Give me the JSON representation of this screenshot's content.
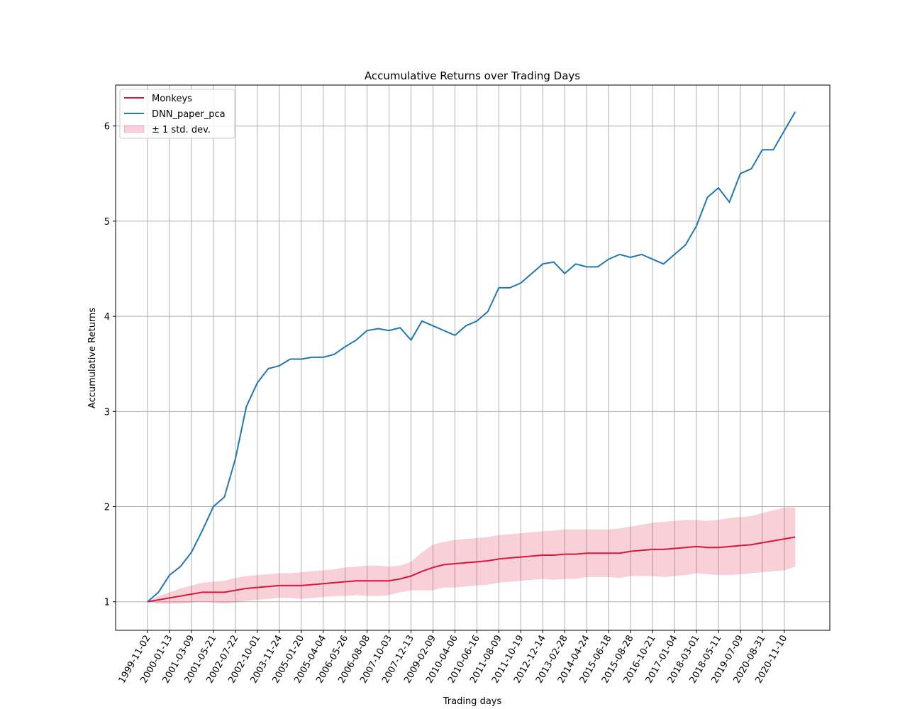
{
  "chart_data": {
    "type": "line",
    "title": "Accumulative Returns over Trading Days",
    "x_label": "Trading days",
    "y_label": "Accumulative Returns",
    "categories": [
      "1999-11-02",
      null,
      "2000-01-13",
      null,
      "2001-03-09",
      null,
      "2001-05-21",
      null,
      "2002-07-22",
      null,
      "2002-10-01",
      null,
      "2003-11-24",
      null,
      "2005-01-20",
      null,
      "2005-04-04",
      null,
      "2006-05-26",
      null,
      "2006-08-08",
      null,
      "2007-10-03",
      null,
      "2007-12-13",
      null,
      "2009-02-09",
      null,
      "2010-04-06",
      null,
      "2010-06-16",
      null,
      "2011-08-09",
      null,
      "2011-10-19",
      null,
      "2012-12-14",
      null,
      "2013-02-28",
      null,
      "2014-04-24",
      null,
      "2015-06-18",
      null,
      "2015-08-28",
      null,
      "2016-10-21",
      null,
      "2017-01-04",
      null,
      "2018-03-01",
      null,
      "2018-05-11",
      null,
      "2019-07-09",
      null,
      "2020-08-31",
      null,
      "2020-11-10",
      null
    ],
    "series": [
      {
        "name": "Monkeys",
        "color": "#dc143c",
        "values": [
          1.0,
          1.02,
          1.04,
          1.06,
          1.08,
          1.1,
          1.1,
          1.1,
          1.12,
          1.14,
          1.15,
          1.16,
          1.17,
          1.17,
          1.17,
          1.18,
          1.19,
          1.2,
          1.21,
          1.22,
          1.22,
          1.22,
          1.22,
          1.24,
          1.27,
          1.32,
          1.36,
          1.39,
          1.4,
          1.41,
          1.42,
          1.43,
          1.45,
          1.46,
          1.47,
          1.48,
          1.49,
          1.49,
          1.5,
          1.5,
          1.51,
          1.51,
          1.51,
          1.51,
          1.53,
          1.54,
          1.55,
          1.55,
          1.56,
          1.57,
          1.58,
          1.57,
          1.57,
          1.58,
          1.59,
          1.6,
          1.62,
          1.64,
          1.66,
          1.68
        ]
      },
      {
        "name": "DNN_paper_pca",
        "color": "#1f77b4",
        "values": [
          1.0,
          1.1,
          1.28,
          1.37,
          1.52,
          1.75,
          2.0,
          2.1,
          2.5,
          3.05,
          3.3,
          3.45,
          3.48,
          3.55,
          3.55,
          3.57,
          3.57,
          3.6,
          3.68,
          3.75,
          3.85,
          3.87,
          3.85,
          3.88,
          3.75,
          3.95,
          3.9,
          3.85,
          3.8,
          3.9,
          3.95,
          4.05,
          4.3,
          4.3,
          4.35,
          4.45,
          4.55,
          4.57,
          4.45,
          4.55,
          4.52,
          4.52,
          4.6,
          4.65,
          4.62,
          4.65,
          4.6,
          4.55,
          4.65,
          4.75,
          4.95,
          5.25,
          5.35,
          5.2,
          5.5,
          5.55,
          5.75,
          5.75,
          5.95,
          6.15
        ]
      },
      {
        "name": "± 1 std. dev.",
        "color": "#dc143c",
        "alpha": 0.2,
        "band": true,
        "upper": [
          1.0,
          1.06,
          1.1,
          1.14,
          1.17,
          1.2,
          1.21,
          1.22,
          1.25,
          1.27,
          1.28,
          1.29,
          1.3,
          1.3,
          1.31,
          1.32,
          1.33,
          1.34,
          1.36,
          1.37,
          1.38,
          1.38,
          1.37,
          1.38,
          1.42,
          1.52,
          1.6,
          1.63,
          1.65,
          1.66,
          1.67,
          1.68,
          1.7,
          1.71,
          1.72,
          1.73,
          1.74,
          1.75,
          1.76,
          1.76,
          1.76,
          1.76,
          1.76,
          1.77,
          1.79,
          1.81,
          1.83,
          1.84,
          1.85,
          1.86,
          1.86,
          1.85,
          1.86,
          1.88,
          1.89,
          1.9,
          1.93,
          1.96,
          1.99,
          1.99
        ],
        "lower": [
          1.0,
          0.98,
          0.98,
          0.98,
          0.99,
          1.0,
          0.99,
          0.98,
          0.99,
          1.01,
          1.02,
          1.03,
          1.04,
          1.04,
          1.03,
          1.04,
          1.05,
          1.06,
          1.06,
          1.07,
          1.06,
          1.06,
          1.07,
          1.1,
          1.12,
          1.12,
          1.12,
          1.15,
          1.15,
          1.16,
          1.17,
          1.18,
          1.2,
          1.21,
          1.22,
          1.23,
          1.24,
          1.23,
          1.24,
          1.24,
          1.26,
          1.26,
          1.26,
          1.25,
          1.27,
          1.27,
          1.27,
          1.26,
          1.27,
          1.28,
          1.3,
          1.29,
          1.28,
          1.28,
          1.29,
          1.3,
          1.31,
          1.32,
          1.33,
          1.37
        ]
      }
    ],
    "ylim": [
      0.7,
      6.43
    ],
    "yticks": [
      1,
      2,
      3,
      4,
      5,
      6
    ],
    "grid": true,
    "legend": "upper left"
  }
}
